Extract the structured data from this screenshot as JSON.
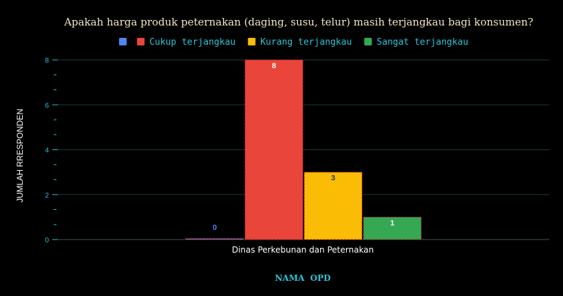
{
  "chart_data": {
    "type": "bar",
    "title": "Apakah harga produk peternakan (daging, susu, telur) masih terjangkau bagi konsumen?",
    "xlabel": "NAMA  OPD",
    "ylabel": "JUMLAH RRESPONDEN",
    "categories": [
      "Dinas Perkebunan dan Peternakan"
    ],
    "ylim": [
      0,
      8
    ],
    "yticks": [
      0,
      2,
      4,
      6,
      8
    ],
    "grid": true,
    "legend_position": "top",
    "series": [
      {
        "name": "",
        "values": [
          0
        ],
        "color": "#4f86f0",
        "label_color": "#4f86f0"
      },
      {
        "name": "Cukup terjangkau",
        "values": [
          8
        ],
        "color": "#e9453a",
        "label_color": "#ffffff"
      },
      {
        "name": "Kurang terjangkau",
        "values": [
          3
        ],
        "color": "#fbbc05",
        "label_color": "#333333"
      },
      {
        "name": "Sangat terjangkau",
        "values": [
          1
        ],
        "color": "#34a853",
        "label_color": "#ffffff"
      }
    ],
    "data_labels": [
      "0",
      "8",
      "3",
      "1"
    ]
  },
  "colors": {
    "background": "#000000",
    "tick": "#2bc4d8",
    "legend_text": "#2bc4d8",
    "grid": "#1f3a3a"
  }
}
